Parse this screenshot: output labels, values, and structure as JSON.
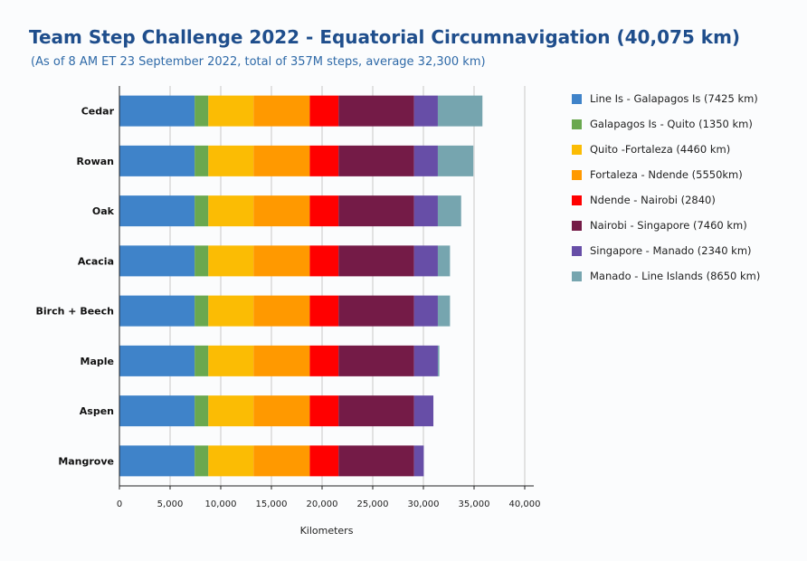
{
  "title": "Team Step Challenge 2022 - Equatorial Circumnavigation (40,075 km)",
  "subtitle": "(As of 8 AM ET 23 September 2022, total of 357M steps, average 32,300 km)",
  "chart_data": {
    "type": "bar",
    "orientation": "horizontal",
    "stacked": true,
    "title": "Team Step Challenge 2022 - Equatorial Circumnavigation (40,075 km)",
    "subtitle": "(As of 8 AM ET 23 September 2022, total of 357M steps, average 32,300 km)",
    "xlabel": "Kilometers",
    "ylabel": "",
    "xlim": [
      0,
      40000
    ],
    "x_ticks": [
      0,
      5000,
      10000,
      15000,
      20000,
      25000,
      30000,
      35000,
      40000
    ],
    "x_tick_labels": [
      "0",
      "5,000",
      "10,000",
      "15,000",
      "20,000",
      "25,000",
      "30,000",
      "35,000",
      "40,000"
    ],
    "grid": "vertical",
    "legend_position": "right",
    "categories": [
      "Cedar",
      "Rowan",
      "Oak",
      "Acacia",
      "Birch + Beech",
      "Maple",
      "Aspen",
      "Mangrove"
    ],
    "series": [
      {
        "name": "Line Is - Galapagos Is (7425 km)",
        "color": "#3f83c9",
        "values": [
          7425,
          7425,
          7425,
          7425,
          7425,
          7425,
          7425,
          7425
        ]
      },
      {
        "name": "Galapagos Is - Quito (1350 km)",
        "color": "#6aa84f",
        "values": [
          1350,
          1350,
          1350,
          1350,
          1350,
          1350,
          1350,
          1350
        ]
      },
      {
        "name": "Quito -Fortaleza (4460 km)",
        "color": "#fbbc04",
        "values": [
          4460,
          4460,
          4460,
          4460,
          4460,
          4460,
          4460,
          4460
        ]
      },
      {
        "name": "Fortaleza - Ndende (5550km)",
        "color": "#ff9900",
        "values": [
          5550,
          5550,
          5550,
          5550,
          5550,
          5550,
          5550,
          5550
        ]
      },
      {
        "name": "Ndende - Nairobi (2840)",
        "color": "#ff0000",
        "values": [
          2840,
          2840,
          2840,
          2840,
          2840,
          2840,
          2840,
          2840
        ]
      },
      {
        "name": "Nairobi - Singapore (7460 km)",
        "color": "#741b47",
        "values": [
          7460,
          7460,
          7460,
          7460,
          7460,
          7460,
          7460,
          7460
        ]
      },
      {
        "name": "Singapore - Manado (2340 km)",
        "color": "#674ea7",
        "values": [
          2340,
          2340,
          2340,
          2340,
          2340,
          2340,
          1900,
          950
        ]
      },
      {
        "name": "Manado - Line Islands (8650 km)",
        "color": "#76a5af",
        "values": [
          4400,
          3500,
          2300,
          1200,
          1200,
          150,
          0,
          0
        ]
      }
    ]
  }
}
